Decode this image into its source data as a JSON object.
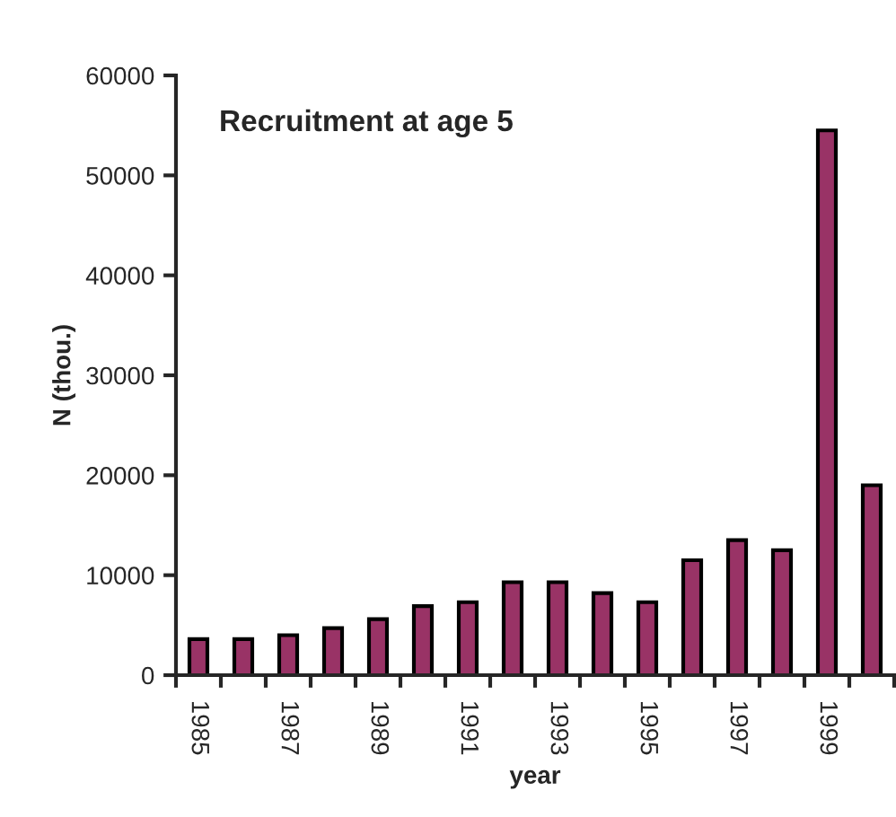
{
  "chart_data": {
    "type": "bar",
    "title": "Recruitment at age 5",
    "xlabel": "year",
    "ylabel": "N (thou.)",
    "categories": [
      "1985",
      null,
      "1987",
      null,
      "1989",
      null,
      "1991",
      null,
      "1993",
      null,
      "1995",
      null,
      "1997",
      null,
      "1999",
      null
    ],
    "values": [
      3600,
      3600,
      4000,
      4700,
      5600,
      6900,
      7300,
      9300,
      9300,
      8200,
      7300,
      11500,
      13500,
      12500,
      54500,
      19000
    ],
    "color": "#993366",
    "ylim": [
      0,
      60000
    ],
    "yticks": [
      0,
      10000,
      20000,
      30000,
      40000,
      50000,
      60000
    ],
    "grid": false
  }
}
